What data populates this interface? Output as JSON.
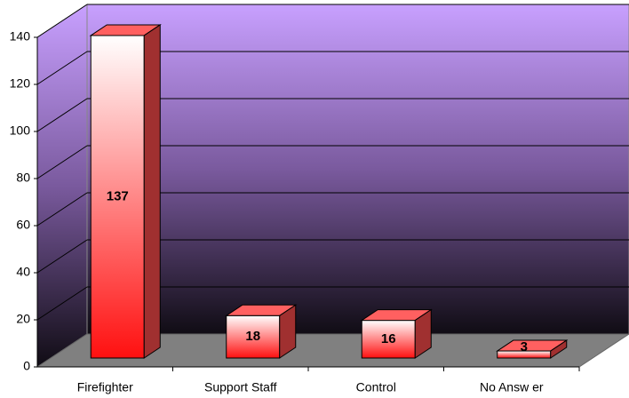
{
  "chart_data": {
    "type": "bar3d",
    "categories": [
      "Firefighter",
      "Support Staff",
      "Control",
      "No Answ er"
    ],
    "values": [
      137,
      18,
      16,
      3
    ],
    "ylim": [
      0,
      140
    ],
    "yticks": [
      0,
      20,
      40,
      60,
      80,
      100,
      120,
      140
    ],
    "grid": true
  }
}
